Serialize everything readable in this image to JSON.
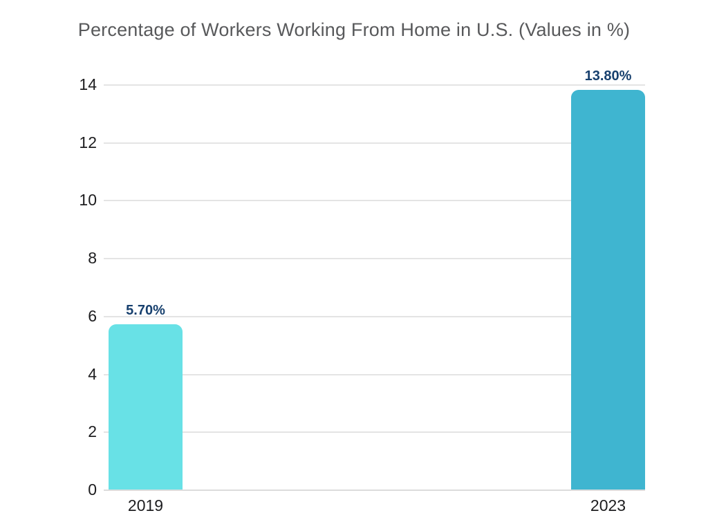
{
  "title": "Percentage of Workers Working From Home in U.S. (Values in %)",
  "chart_data": {
    "type": "bar",
    "title": "Percentage of Workers Working From Home in U.S. (Values in %)",
    "categories": [
      "2019",
      "2023"
    ],
    "values": [
      5.7,
      13.8
    ],
    "value_labels": [
      "5.70%",
      "13.80%"
    ],
    "yticks": [
      0,
      2,
      4,
      6,
      8,
      10,
      12,
      14
    ],
    "ylim": [
      0,
      14
    ],
    "xlabel": "",
    "ylabel": "",
    "grid": true,
    "legend": false,
    "colors": {
      "bar_2019": "#68E1E6",
      "bar_2023": "#3FB5D0",
      "value_label": "#17406E",
      "title_text": "#58595B",
      "axis_text": "#1D1D1F",
      "gridline": "#E4E4E4",
      "background": "#FFFFFF"
    }
  }
}
